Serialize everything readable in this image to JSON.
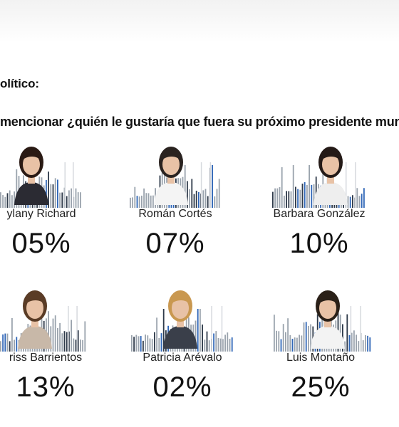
{
  "heading": "olítico:",
  "question": "mencionar ¿quién le gustaría que fuera su próximo presidente mun",
  "candidates": [
    {
      "name": "ylany Richard",
      "percent": "05%",
      "hair": "#2a1a14",
      "top": "#2b2b33"
    },
    {
      "name": "Román Cortés",
      "percent": "07%",
      "hair": "#2a2320",
      "top": "#f4f4f4"
    },
    {
      "name": "Barbara González",
      "percent": "10%",
      "hair": "#241a17",
      "top": "#eeeeee"
    },
    {
      "name": "riss Barrientos",
      "percent": "13%",
      "hair": "#5a3c26",
      "top": "#c8b8a8"
    },
    {
      "name": "Patricia Arévalo",
      "percent": "02%",
      "hair": "#c99850",
      "top": "#3a3f4a"
    },
    {
      "name": "Luis Montaño",
      "percent": "25%",
      "hair": "#2a2018",
      "top": "#f3f3f3"
    }
  ],
  "colors": {
    "bar_gray": "#9aa3ad",
    "bar_dark": "#2e3a4a",
    "bar_blue": "#2f66b7",
    "skin": "#e8c2a6"
  }
}
